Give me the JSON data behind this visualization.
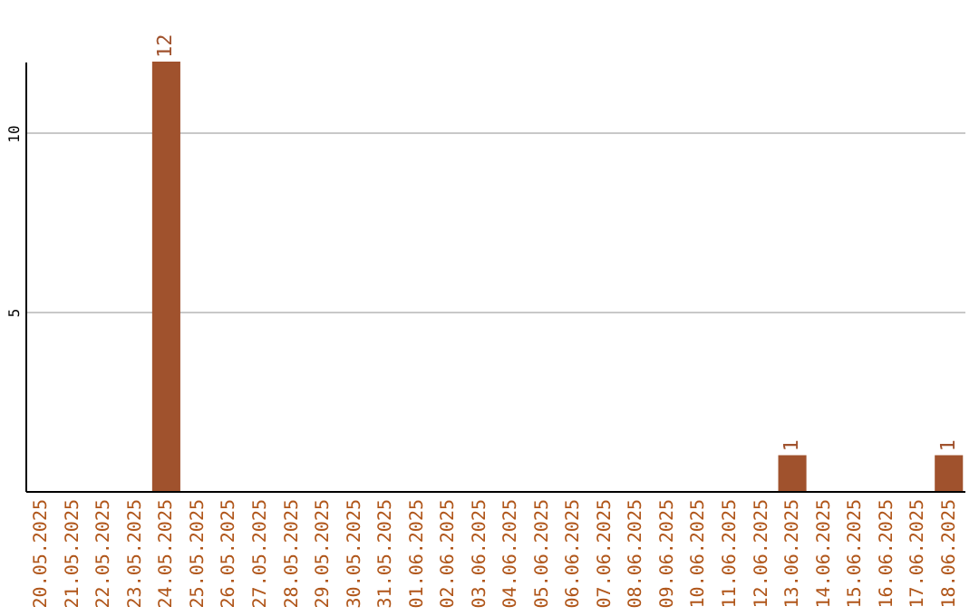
{
  "chart_data": {
    "type": "bar",
    "categories": [
      "20.05.2025",
      "21.05.2025",
      "22.05.2025",
      "23.05.2025",
      "24.05.2025",
      "25.05.2025",
      "26.05.2025",
      "27.05.2025",
      "28.05.2025",
      "29.05.2025",
      "30.05.2025",
      "31.05.2025",
      "01.06.2025",
      "02.06.2025",
      "03.06.2025",
      "04.06.2025",
      "05.06.2025",
      "06.06.2025",
      "07.06.2025",
      "08.06.2025",
      "09.06.2025",
      "10.06.2025",
      "11.06.2025",
      "12.06.2025",
      "13.06.2025",
      "14.06.2025",
      "15.06.2025",
      "16.06.2025",
      "17.06.2025",
      "18.06.2025"
    ],
    "values": [
      0,
      0,
      0,
      0,
      12,
      0,
      0,
      0,
      0,
      0,
      0,
      0,
      0,
      0,
      0,
      0,
      0,
      0,
      0,
      0,
      0,
      0,
      0,
      0,
      1,
      0,
      0,
      0,
      0,
      1
    ],
    "value_labels": [
      null,
      null,
      null,
      null,
      "12",
      null,
      null,
      null,
      null,
      null,
      null,
      null,
      null,
      null,
      null,
      null,
      null,
      null,
      null,
      null,
      null,
      null,
      null,
      null,
      "1",
      null,
      null,
      null,
      null,
      "1"
    ],
    "color": "#a0522d",
    "ylim": [
      0,
      12
    ],
    "yticks": [
      5,
      10
    ],
    "grid": "y"
  }
}
